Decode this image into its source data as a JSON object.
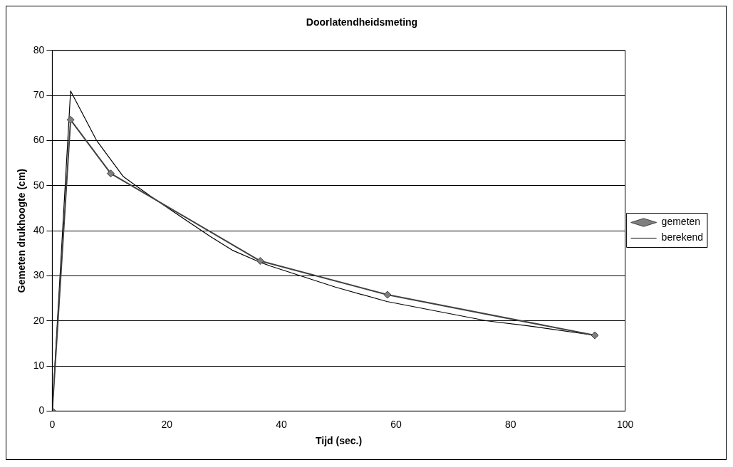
{
  "chart_data": {
    "type": "line",
    "title": "Doorlatendheidsmeting",
    "xlabel": "Tijd (sec.)",
    "ylabel": "Gemeten drukhoogte (cm)",
    "xlim": [
      0,
      100
    ],
    "xticks": [
      0,
      20,
      40,
      60,
      80,
      100
    ],
    "ylim": [
      0,
      80
    ],
    "yticks": [
      0,
      10,
      20,
      30,
      40,
      50,
      60,
      70,
      80
    ],
    "grid": "y",
    "legend": "right",
    "series": [
      {
        "name": "gemeten",
        "color": "#404040",
        "marker": "diamond",
        "x": [
          0,
          3.2,
          10.2,
          36.3,
          58.5,
          94.7
        ],
        "values": [
          0,
          64.6,
          52.7,
          33.3,
          25.8,
          16.8
        ]
      },
      {
        "name": "berekend",
        "color": "#000000",
        "marker": "none",
        "x": [
          0,
          3.2,
          7.7,
          12.4,
          17.1,
          22,
          27.6,
          31.4,
          36.3,
          38,
          49.4,
          58.4,
          75.9,
          83,
          94.7
        ],
        "values": [
          0,
          71,
          60.1,
          52,
          47.7,
          43.5,
          38.7,
          35.7,
          33,
          32.2,
          27.5,
          24.3,
          20,
          18.9,
          16.8
        ]
      }
    ]
  }
}
